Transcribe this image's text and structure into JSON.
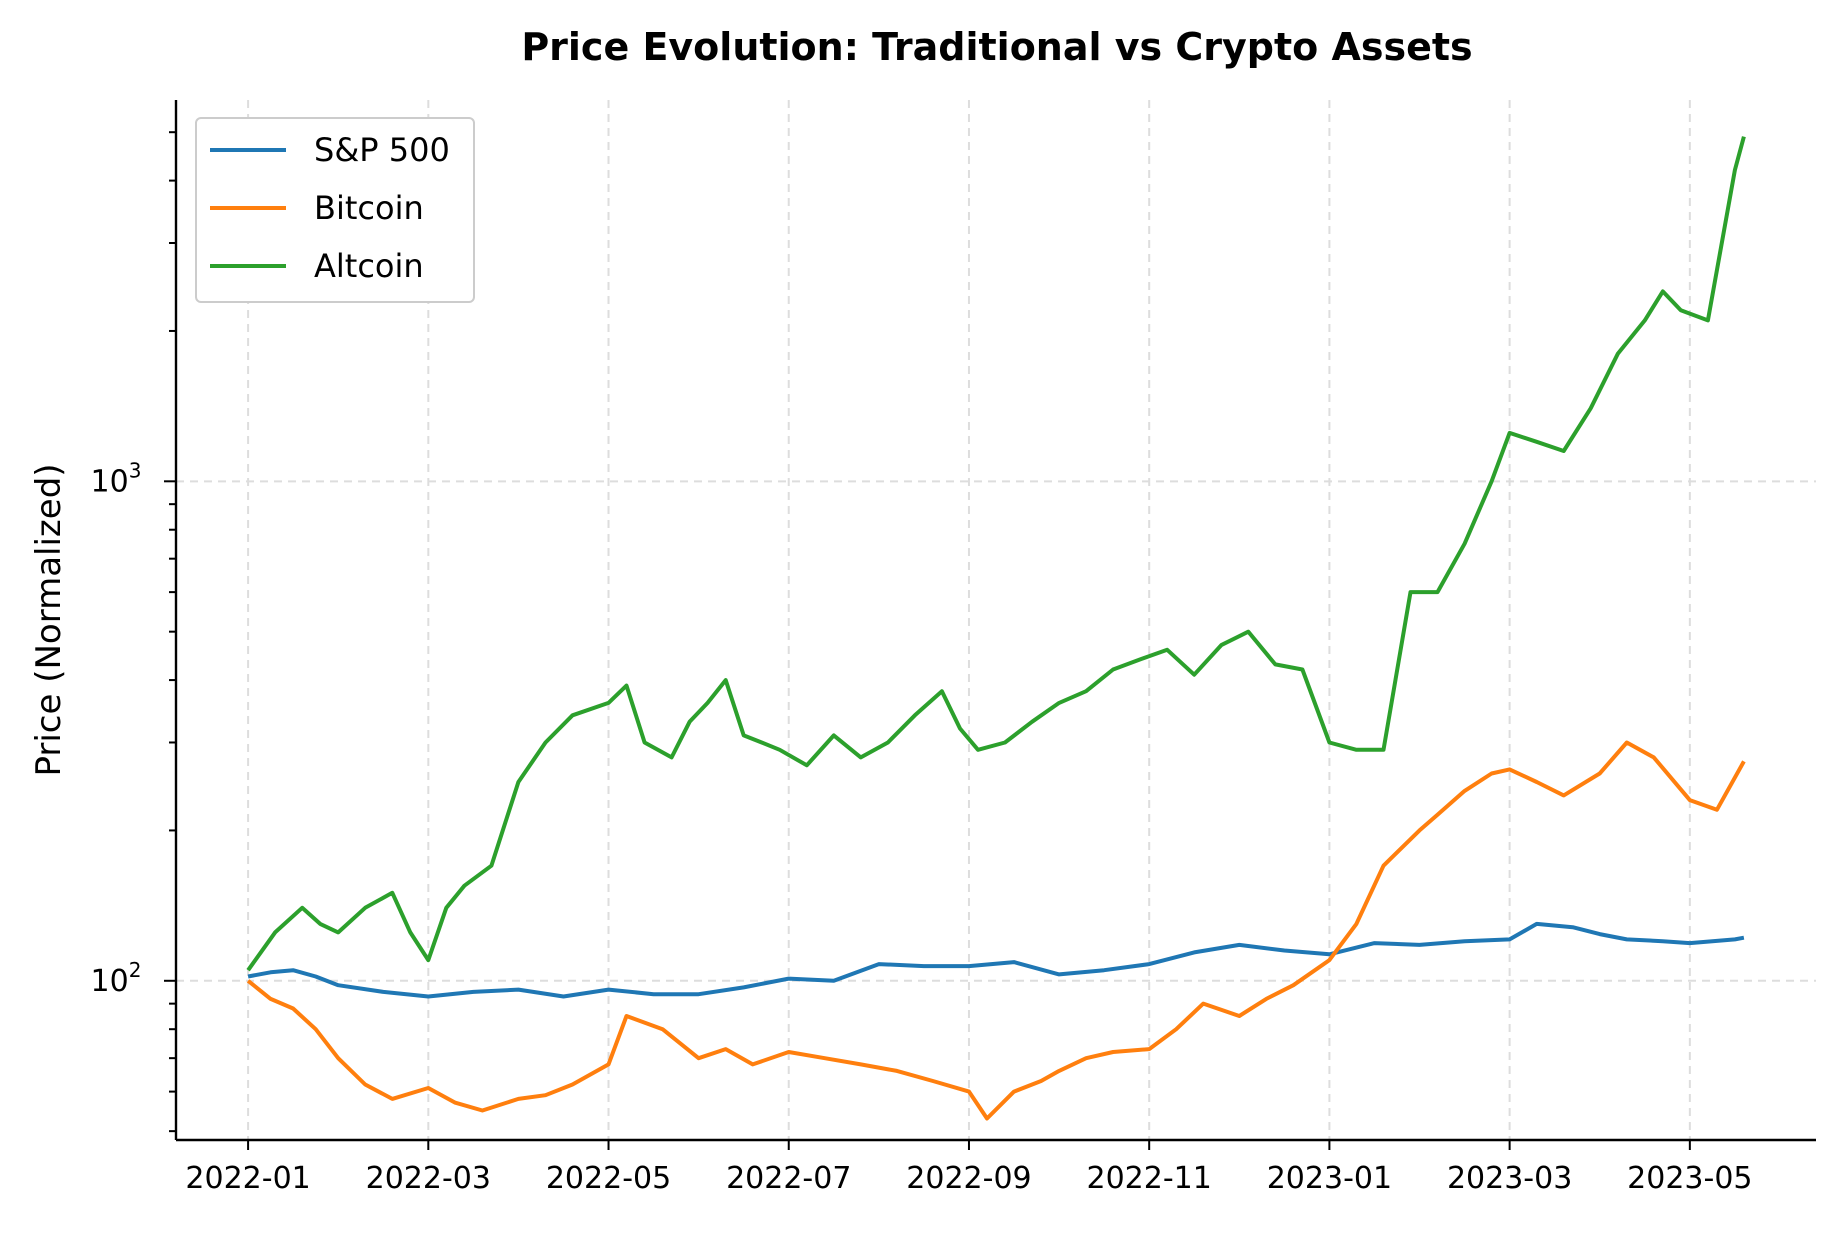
{
  "chart_data": {
    "type": "line",
    "title": "Price Evolution: Traditional vs Crypto Assets",
    "xlabel": "",
    "ylabel": "Price (Normalized)",
    "yscale": "log",
    "ylim": [
      48,
      5800
    ],
    "x_tick_labels": [
      "2022-01",
      "2022-03",
      "2022-05",
      "2022-07",
      "2022-09",
      "2022-11",
      "2023-01",
      "2023-03",
      "2023-05"
    ],
    "x_tick_months": [
      0,
      2,
      4,
      6,
      8,
      10,
      12,
      14,
      16
    ],
    "xlim_months": [
      -0.8,
      17.4
    ],
    "y_major_ticks": [
      {
        "value": 100,
        "base": "10",
        "exp": "2"
      },
      {
        "value": 1000,
        "base": "10",
        "exp": "3"
      }
    ],
    "y_minor_ticks": [
      50,
      60,
      70,
      80,
      90,
      200,
      300,
      400,
      500,
      600,
      700,
      800,
      900,
      2000,
      3000,
      4000,
      5000
    ],
    "grid": true,
    "legend_position": "top-left",
    "series": [
      {
        "name": "S&P 500",
        "color": "#1f77b4",
        "x_months": [
          0,
          0.25,
          0.5,
          0.75,
          1,
          1.5,
          2,
          2.5,
          3,
          3.5,
          4,
          4.5,
          5,
          5.5,
          6,
          6.5,
          7,
          7.5,
          8,
          8.5,
          9,
          9.5,
          10,
          10.5,
          11,
          11.5,
          12,
          12.5,
          13,
          13.5,
          14,
          14.3,
          14.7,
          15,
          15.3,
          15.7,
          16,
          16.5,
          16.6
        ],
        "values": [
          102,
          104,
          105,
          102,
          98,
          95,
          93,
          95,
          96,
          93,
          96,
          94,
          94,
          97,
          101,
          100,
          108,
          107,
          107,
          109,
          103,
          105,
          108,
          114,
          118,
          115,
          113,
          119,
          118,
          120,
          121,
          130,
          128,
          124,
          121,
          120,
          119,
          121,
          122
        ]
      },
      {
        "name": "Bitcoin",
        "color": "#ff7f0e",
        "x_months": [
          0,
          0.25,
          0.5,
          0.75,
          1,
          1.3,
          1.6,
          2,
          2.3,
          2.6,
          3,
          3.3,
          3.6,
          4,
          4.2,
          4.6,
          5,
          5.3,
          5.6,
          6,
          6.4,
          6.8,
          7.2,
          7.6,
          8,
          8.2,
          8.5,
          8.8,
          9,
          9.3,
          9.6,
          10,
          10.3,
          10.6,
          11,
          11.3,
          11.6,
          12,
          12.3,
          12.6,
          13,
          13.2,
          13.5,
          13.8,
          14,
          14.3,
          14.6,
          15,
          15.3,
          15.6,
          16,
          16.3,
          16.6
        ],
        "values": [
          100,
          92,
          88,
          80,
          70,
          62,
          58,
          61,
          57,
          55,
          58,
          59,
          62,
          68,
          85,
          80,
          70,
          73,
          68,
          72,
          70,
          68,
          66,
          63,
          60,
          53,
          60,
          63,
          66,
          70,
          72,
          73,
          80,
          90,
          85,
          92,
          98,
          110,
          130,
          170,
          200,
          215,
          240,
          260,
          265,
          250,
          235,
          260,
          300,
          280,
          230,
          220,
          275
        ]
      },
      {
        "name": "Altcoin",
        "color": "#2ca02c",
        "x_months": [
          0,
          0.3,
          0.6,
          0.8,
          1,
          1.3,
          1.6,
          1.8,
          2,
          2.2,
          2.4,
          2.7,
          3,
          3.3,
          3.6,
          4,
          4.2,
          4.4,
          4.7,
          4.9,
          5.1,
          5.3,
          5.5,
          5.7,
          5.9,
          6.2,
          6.5,
          6.8,
          7.1,
          7.4,
          7.7,
          7.9,
          8.1,
          8.4,
          8.7,
          9,
          9.3,
          9.6,
          9.9,
          10.2,
          10.5,
          10.8,
          11.1,
          11.4,
          11.7,
          12,
          12.3,
          12.6,
          12.9,
          13.2,
          13.5,
          13.8,
          14,
          14.3,
          14.6,
          14.9,
          15.2,
          15.5,
          15.7,
          15.9,
          16.2,
          16.5,
          16.6
        ],
        "values": [
          105,
          125,
          140,
          130,
          125,
          140,
          150,
          125,
          110,
          140,
          155,
          170,
          250,
          300,
          340,
          360,
          390,
          300,
          280,
          330,
          360,
          400,
          310,
          300,
          290,
          270,
          310,
          280,
          300,
          340,
          380,
          320,
          290,
          300,
          330,
          360,
          380,
          420,
          440,
          460,
          410,
          470,
          500,
          430,
          420,
          300,
          290,
          290,
          600,
          600,
          750,
          1000,
          1250,
          1200,
          1150,
          1400,
          1800,
          2100,
          2400,
          2200,
          2100,
          4200,
          4900
        ]
      }
    ]
  }
}
